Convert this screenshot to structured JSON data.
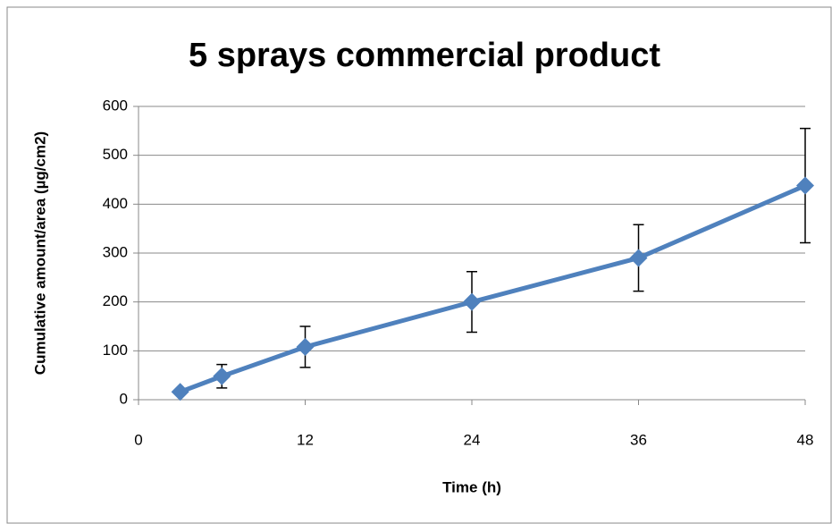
{
  "chart_data": {
    "type": "line",
    "title": "5 sprays commercial product",
    "x_label": "Time (h)",
    "y_label": "Cumulative amount/area (µg/cm2)",
    "x": [
      3,
      6,
      12,
      24,
      36,
      48
    ],
    "values": [
      16,
      48,
      108,
      200,
      290,
      438
    ],
    "errors": [
      5,
      24,
      42,
      62,
      68,
      117
    ],
    "color": "#4f81bd",
    "xlim": [
      0,
      48
    ],
    "xticks": [
      0,
      12,
      24,
      36,
      48
    ],
    "ylim": [
      0,
      600
    ],
    "yticks": [
      0,
      100,
      200,
      300,
      400,
      500,
      600
    ],
    "grid": true
  }
}
